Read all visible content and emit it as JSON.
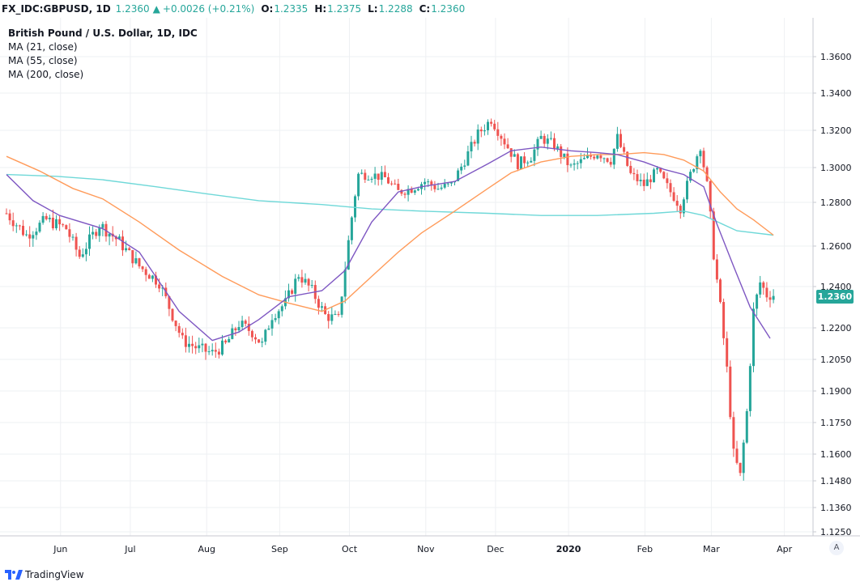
{
  "header": {
    "symbol": "FX_IDC:GBPUSD, 1D",
    "last": "1.2360",
    "change": "+0.0026 (+0.21%)",
    "o_label": "O:",
    "o_value": "1.2335",
    "h_label": "H:",
    "h_value": "1.2375",
    "l_label": "L:",
    "l_value": "1.2288",
    "c_label": "C:",
    "c_value": "1.2360"
  },
  "legend": {
    "title": "British Pound / U.S. Dollar, 1D, IDC",
    "ma21": "MA (21, close)",
    "ma55": "MA (55, close)",
    "ma200": "MA (200, close)"
  },
  "price_tag": "1.2360",
  "auto_button": "A",
  "footer": {
    "brand": "TradingView"
  },
  "colors": {
    "up": "#26a69a",
    "down": "#ef5350",
    "ma21": "#7e57c2",
    "ma55": "#ff9b5a",
    "ma200": "#6fd8d8"
  },
  "chart_data": {
    "type": "candlestick",
    "y_ticks": [
      "1.3600",
      "1.3400",
      "1.3200",
      "1.3000",
      "1.2800",
      "1.2600",
      "1.2400",
      "1.2200",
      "1.2050",
      "1.1900",
      "1.1750",
      "1.1600",
      "1.1480",
      "1.1360",
      "1.1250"
    ],
    "x_ticks": [
      {
        "label": "Jun",
        "bold": false,
        "index": 8
      },
      {
        "label": "Jul",
        "bold": false,
        "index": 29
      },
      {
        "label": "Aug",
        "bold": false,
        "index": 52
      },
      {
        "label": "Sep",
        "bold": false,
        "index": 74
      },
      {
        "label": "Oct",
        "bold": false,
        "index": 95
      },
      {
        "label": "Nov",
        "bold": false,
        "index": 118
      },
      {
        "label": "Dec",
        "bold": false,
        "index": 139
      },
      {
        "label": "2020",
        "bold": true,
        "index": 161
      },
      {
        "label": "Feb",
        "bold": false,
        "index": 184
      },
      {
        "label": "Mar",
        "bold": false,
        "index": 204
      },
      {
        "label": "Apr",
        "bold": false,
        "index": 226
      }
    ],
    "ma21": [
      [
        0,
        1.296
      ],
      [
        8,
        1.281
      ],
      [
        16,
        1.274
      ],
      [
        29,
        1.268
      ],
      [
        40,
        1.257
      ],
      [
        52,
        1.228
      ],
      [
        62,
        1.214
      ],
      [
        70,
        1.218
      ],
      [
        76,
        1.224
      ],
      [
        85,
        1.235
      ],
      [
        95,
        1.238
      ],
      [
        102,
        1.248
      ],
      [
        110,
        1.271
      ],
      [
        118,
        1.286
      ],
      [
        125,
        1.289
      ],
      [
        135,
        1.292
      ],
      [
        145,
        1.302
      ],
      [
        152,
        1.309
      ],
      [
        161,
        1.311
      ],
      [
        170,
        1.309
      ],
      [
        178,
        1.308
      ],
      [
        184,
        1.307
      ],
      [
        192,
        1.303
      ],
      [
        198,
        1.299
      ],
      [
        204,
        1.296
      ],
      [
        210,
        1.289
      ],
      [
        214,
        1.27
      ],
      [
        219,
        1.25
      ],
      [
        224,
        1.23
      ],
      [
        230,
        1.215
      ]
    ],
    "ma55": [
      [
        0,
        1.306
      ],
      [
        10,
        1.298
      ],
      [
        20,
        1.288
      ],
      [
        29,
        1.282
      ],
      [
        40,
        1.271
      ],
      [
        52,
        1.258
      ],
      [
        65,
        1.245
      ],
      [
        76,
        1.236
      ],
      [
        85,
        1.232
      ],
      [
        95,
        1.228
      ],
      [
        102,
        1.233
      ],
      [
        110,
        1.245
      ],
      [
        118,
        1.257
      ],
      [
        125,
        1.266
      ],
      [
        135,
        1.276
      ],
      [
        145,
        1.288
      ],
      [
        152,
        1.297
      ],
      [
        161,
        1.303
      ],
      [
        170,
        1.306
      ],
      [
        178,
        1.307
      ],
      [
        184,
        1.307
      ],
      [
        192,
        1.308
      ],
      [
        198,
        1.307
      ],
      [
        204,
        1.304
      ],
      [
        210,
        1.298
      ],
      [
        215,
        1.286
      ],
      [
        220,
        1.277
      ],
      [
        225,
        1.272
      ],
      [
        231,
        1.265
      ]
    ],
    "ma200": [
      [
        0,
        1.296
      ],
      [
        15,
        1.295
      ],
      [
        29,
        1.293
      ],
      [
        45,
        1.289
      ],
      [
        60,
        1.285
      ],
      [
        76,
        1.281
      ],
      [
        95,
        1.279
      ],
      [
        110,
        1.277
      ],
      [
        125,
        1.276
      ],
      [
        145,
        1.275
      ],
      [
        161,
        1.274
      ],
      [
        178,
        1.274
      ],
      [
        195,
        1.275
      ],
      [
        204,
        1.276
      ],
      [
        210,
        1.274
      ],
      [
        220,
        1.267
      ],
      [
        231,
        1.265
      ]
    ]
  }
}
